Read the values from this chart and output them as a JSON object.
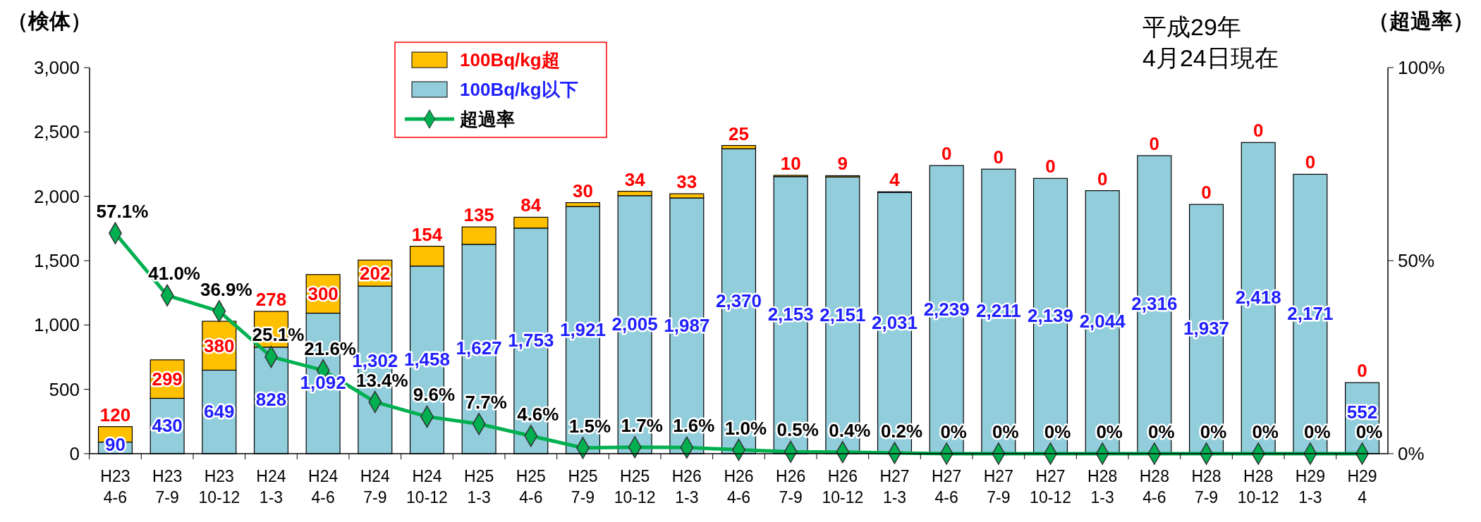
{
  "chart_data": {
    "type": "bar",
    "stacked": true,
    "ylabel": "（検体）",
    "y2label": "（超過率）",
    "annotations": [
      "平成29年\n4月24日現在"
    ],
    "categories": [
      "H23\n4-6",
      "H23\n7-9",
      "H23\n10-12",
      "H24\n1-3",
      "H24\n4-6",
      "H24\n7-9",
      "H24\n10-12",
      "H25\n1-3",
      "H25\n4-6",
      "H25\n7-9",
      "H25\n10-12",
      "H26\n1-3",
      "H26\n4-6",
      "H26\n7-9",
      "H26\n10-12",
      "H27\n1-3",
      "H27\n4-6",
      "H27\n7-9",
      "H27\n10-12",
      "H28\n1-3",
      "H28\n4-6",
      "H28\n7-9",
      "H28\n10-12",
      "H29\n1-3",
      "H29\n4"
    ],
    "series": [
      {
        "name": "100Bq/kg以下",
        "color": "#92cddc",
        "values": [
          90,
          430,
          649,
          828,
          1092,
          1302,
          1458,
          1627,
          1753,
          1921,
          2005,
          1987,
          2370,
          2153,
          2151,
          2031,
          2239,
          2211,
          2139,
          2044,
          2316,
          1937,
          2418,
          2171,
          552
        ],
        "value_labels": [
          "90",
          "430",
          "649",
          "828",
          "1,092",
          "1,302",
          "1,458",
          "1,627",
          "1,753",
          "1,921",
          "2,005",
          "1,987",
          "2,370",
          "2,153",
          "2,151",
          "2,031",
          "2,239",
          "2,211",
          "2,139",
          "2,044",
          "2,316",
          "1,937",
          "2,418",
          "2,171",
          "552"
        ]
      },
      {
        "name": "100Bq/kg超",
        "color": "#ffc000",
        "values": [
          120,
          299,
          380,
          278,
          300,
          202,
          154,
          135,
          84,
          30,
          34,
          33,
          25,
          10,
          9,
          4,
          0,
          0,
          0,
          0,
          0,
          0,
          0,
          0,
          0
        ]
      },
      {
        "name": "超過率",
        "type": "line",
        "axis": "y2",
        "color": "#00b050",
        "marker": "diamond",
        "values": [
          57.1,
          41.0,
          36.9,
          25.1,
          21.6,
          13.4,
          9.6,
          7.7,
          4.6,
          1.5,
          1.7,
          1.6,
          1.0,
          0.5,
          0.4,
          0.2,
          0,
          0,
          0,
          0,
          0,
          0,
          0,
          0,
          0
        ],
        "value_labels": [
          "57.1%",
          "41.0%",
          "36.9%",
          "25.1%",
          "21.6%",
          "13.4%",
          "9.6%",
          "7.7%",
          "4.6%",
          "1.5%",
          "1.7%",
          "1.6%",
          "1.0%",
          "0.5%",
          "0.4%",
          "0.2%",
          "0%",
          "0%",
          "0%",
          "0%",
          "0%",
          "0%",
          "0%",
          "0%",
          "0%"
        ]
      }
    ],
    "data_labels": true,
    "ylim": [
      0,
      3000
    ],
    "yticks": [
      {
        "value": 0,
        "label": "0"
      },
      {
        "value": 500,
        "label": "500"
      },
      {
        "value": 1000,
        "label": "1,000"
      },
      {
        "value": 1500,
        "label": "1,500"
      },
      {
        "value": 2000,
        "label": "2,000"
      },
      {
        "value": 2500,
        "label": "2,500"
      },
      {
        "value": 3000,
        "label": "3,000"
      }
    ],
    "y2lim": [
      0,
      100
    ],
    "y2ticks": [
      {
        "value": 0,
        "label": "0%"
      },
      {
        "value": 50,
        "label": "50%"
      },
      {
        "value": 100,
        "label": "100%"
      }
    ],
    "grid": false,
    "legend": "top left"
  }
}
